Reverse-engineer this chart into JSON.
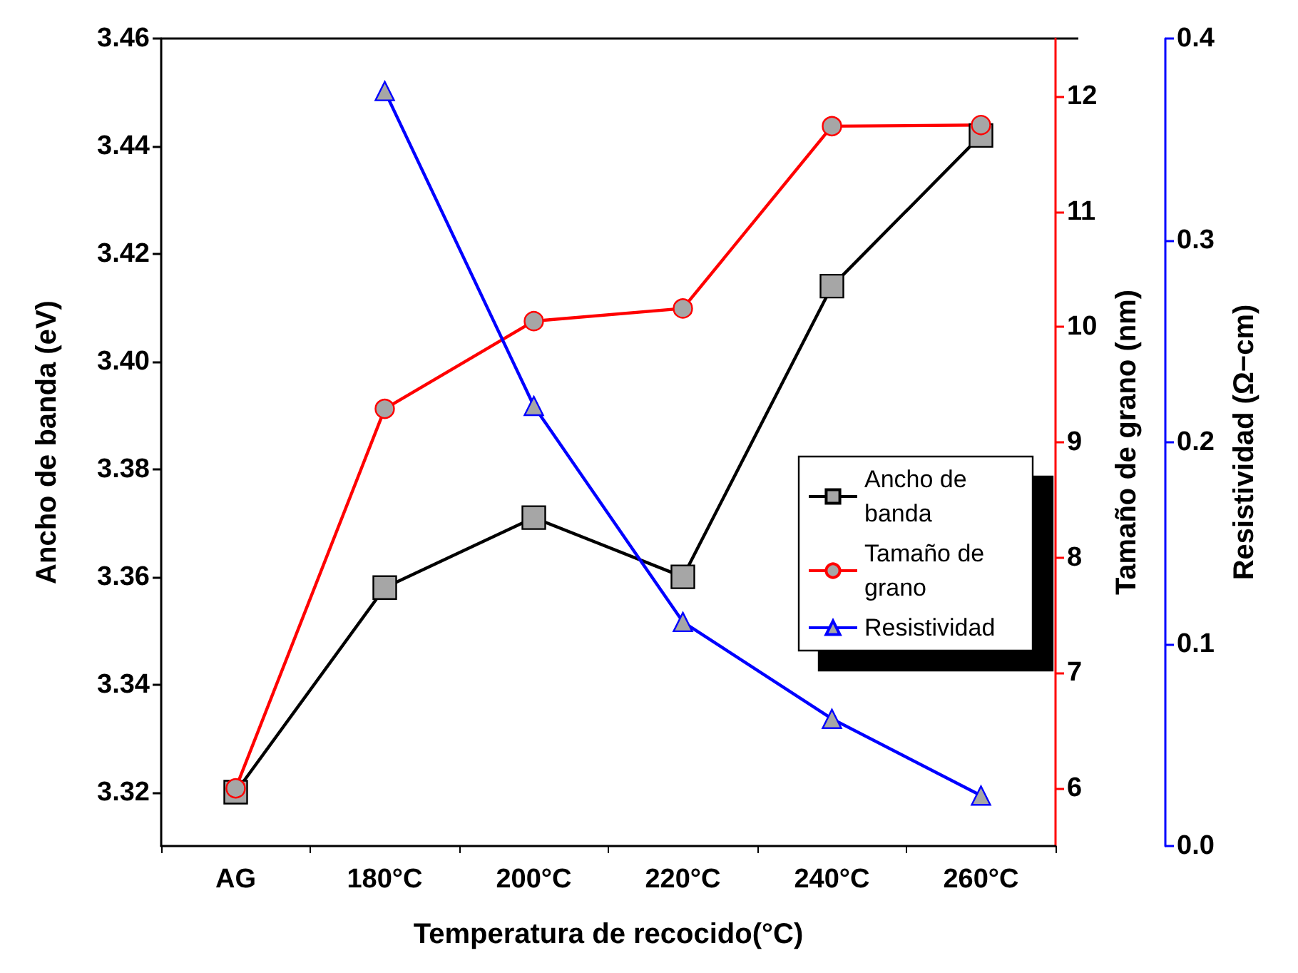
{
  "chart_data": {
    "type": "line",
    "xlabel": "Temperatura de recocido(°C)",
    "ylabel": "Ancho de banda (eV)",
    "y2label": "Tamaño de grano (nm)",
    "y3label": "Resistividad (Ω−cm)",
    "categories": [
      "AG",
      "180°C",
      "200°C",
      "220°C",
      "240°C",
      "260°C"
    ],
    "series": [
      {
        "name": "Ancho de banda",
        "color": "#000000",
        "marker": "square",
        "values": [
          3.32,
          3.358,
          3.371,
          3.36,
          3.414,
          3.442
        ]
      },
      {
        "name": "Tamaño de grano",
        "color": "#ff0000",
        "marker": "circle",
        "axis": "y2",
        "values": [
          6.0,
          9.29,
          10.05,
          10.16,
          11.74,
          11.75
        ]
      },
      {
        "name": "Resistividad",
        "color": "#0000ff",
        "marker": "triangle",
        "axis": "y3",
        "values": [
          null,
          0.374,
          0.218,
          0.111,
          0.063,
          0.025
        ]
      }
    ],
    "ylim": [
      3.31,
      3.46
    ],
    "yticks": [
      {
        "value": 3.32,
        "label": "3.32"
      },
      {
        "value": 3.34,
        "label": "3.34"
      },
      {
        "value": 3.36,
        "label": "3.36"
      },
      {
        "value": 3.38,
        "label": "3.38"
      },
      {
        "value": 3.4,
        "label": "3.40"
      },
      {
        "value": 3.42,
        "label": "3.42"
      },
      {
        "value": 3.44,
        "label": "3.44"
      },
      {
        "value": 3.46,
        "label": "3.46"
      }
    ],
    "y2lim": [
      5.5,
      12.5
    ],
    "y2ticks": [
      6,
      7,
      8,
      9,
      10,
      11,
      12
    ],
    "y3lim": [
      0,
      0.4
    ],
    "y3ticks": [
      {
        "value": 0,
        "label": "0.0"
      },
      {
        "value": 0.1,
        "label": "0.1"
      },
      {
        "value": 0.2,
        "label": "0.2"
      },
      {
        "value": 0.3,
        "label": "0.3"
      },
      {
        "value": 0.4,
        "label": "0.4"
      }
    ],
    "legend": "right",
    "grid": false
  }
}
